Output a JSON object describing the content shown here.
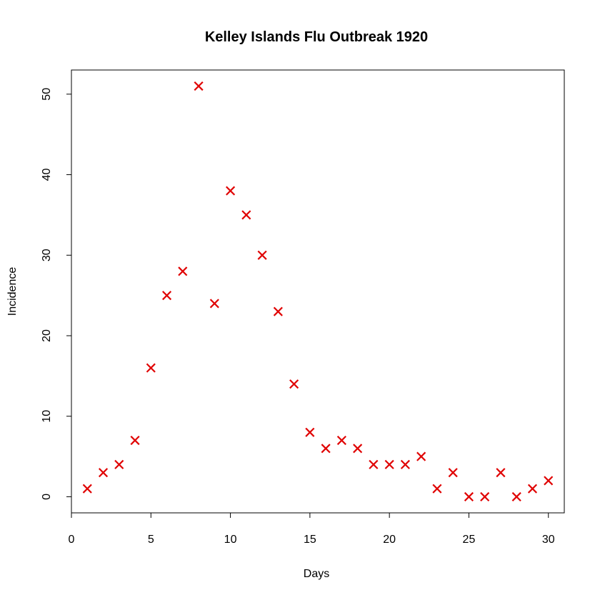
{
  "chart_data": {
    "type": "scatter",
    "title": "Kelley Islands Flu Outbreak 1920",
    "xlabel": "Days",
    "ylabel": "Incidence",
    "xlim": [
      0,
      31
    ],
    "ylim": [
      -2,
      53
    ],
    "x_ticks": [
      0,
      5,
      10,
      15,
      20,
      25,
      30
    ],
    "y_ticks": [
      0,
      10,
      20,
      30,
      40,
      50
    ],
    "grid": false,
    "marker": "x",
    "marker_color": "#e00000",
    "x": [
      1,
      2,
      3,
      4,
      5,
      6,
      7,
      8,
      9,
      10,
      11,
      12,
      13,
      14,
      15,
      16,
      17,
      18,
      19,
      20,
      21,
      22,
      23,
      24,
      25,
      26,
      27,
      28,
      29,
      30
    ],
    "y": [
      1,
      3,
      4,
      7,
      16,
      25,
      28,
      51,
      24,
      38,
      35,
      30,
      23,
      14,
      8,
      6,
      7,
      6,
      4,
      4,
      4,
      5,
      1,
      3,
      0,
      0,
      3,
      0,
      1,
      2
    ]
  }
}
